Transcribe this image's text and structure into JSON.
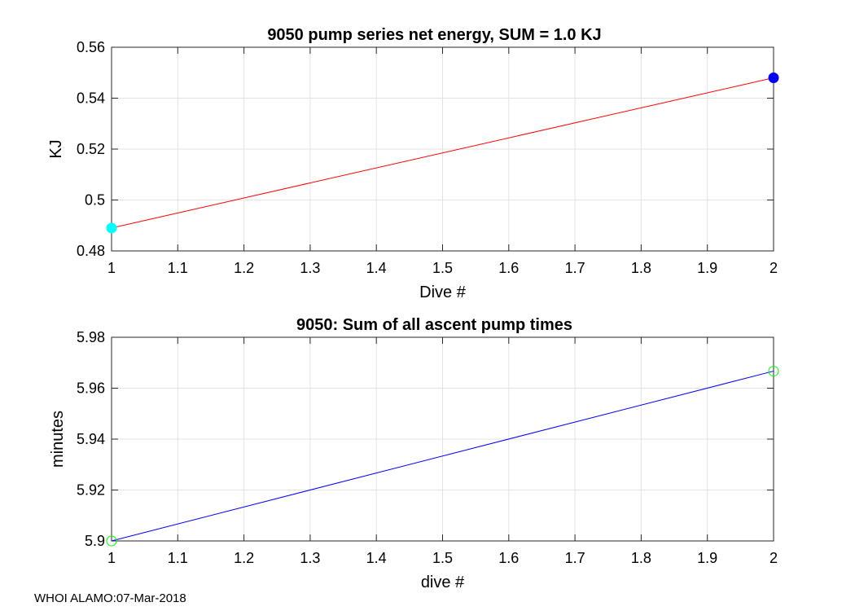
{
  "chart_data": [
    {
      "type": "line",
      "title": "9050 pump series net energy, SUM =   1.0 KJ",
      "xlabel": "Dive #",
      "ylabel": "KJ",
      "xlim": [
        1,
        2
      ],
      "ylim": [
        0.48,
        0.56
      ],
      "x_ticks": [
        1,
        1.1,
        1.2,
        1.3,
        1.4,
        1.5,
        1.6,
        1.7,
        1.8,
        1.9,
        2
      ],
      "x_tick_labels": [
        "1",
        "1.1",
        "1.2",
        "1.3",
        "1.4",
        "1.5",
        "1.6",
        "1.7",
        "1.8",
        "1.9",
        "2"
      ],
      "y_ticks": [
        0.48,
        0.5,
        0.52,
        0.54,
        0.56
      ],
      "y_tick_labels": [
        "0.48",
        "0.5",
        "0.52",
        "0.54",
        "0.56"
      ],
      "grid": true,
      "series": [
        {
          "name": "net energy",
          "x": [
            1,
            2
          ],
          "y": [
            0.489,
            0.548
          ],
          "line_color": "#ff0000",
          "marker": "filled-circle",
          "marker_colors": [
            "#00ffff",
            "#0000ff"
          ]
        }
      ]
    },
    {
      "type": "line",
      "title": "9050: Sum of all ascent pump times",
      "xlabel": "dive #",
      "ylabel": "minutes",
      "xlim": [
        1,
        2
      ],
      "ylim": [
        5.9,
        5.98
      ],
      "x_ticks": [
        1,
        1.1,
        1.2,
        1.3,
        1.4,
        1.5,
        1.6,
        1.7,
        1.8,
        1.9,
        2
      ],
      "x_tick_labels": [
        "1",
        "1.1",
        "1.2",
        "1.3",
        "1.4",
        "1.5",
        "1.6",
        "1.7",
        "1.8",
        "1.9",
        "2"
      ],
      "y_ticks": [
        5.9,
        5.92,
        5.94,
        5.96,
        5.98
      ],
      "y_tick_labels": [
        "5.9",
        "5.92",
        "5.94",
        "5.96",
        "5.98"
      ],
      "grid": true,
      "series": [
        {
          "name": "ascent pump time",
          "x": [
            1,
            2
          ],
          "y": [
            5.9,
            5.9667
          ],
          "line_color": "#0000ff",
          "marker": "open-circle",
          "marker_colors": [
            "#00ff00",
            "#00ff00"
          ]
        }
      ]
    }
  ],
  "footer": "WHOI ALAMO:07-Mar-2018"
}
